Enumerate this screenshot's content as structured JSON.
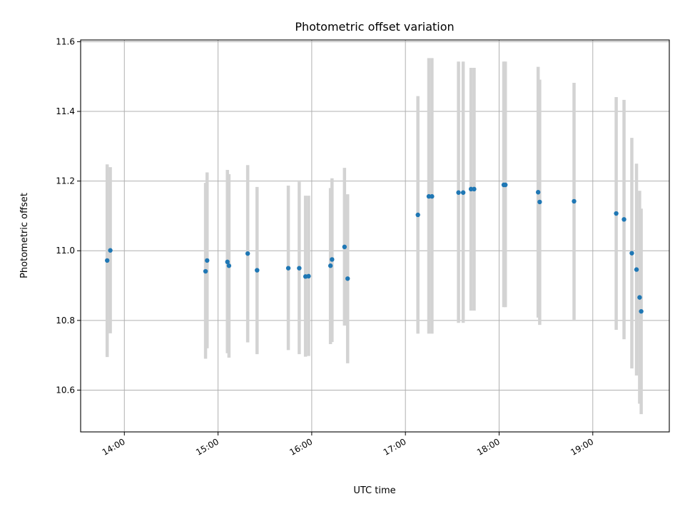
{
  "chart_data": {
    "type": "scatter",
    "title": "Photometric offset variation",
    "xlabel": "UTC time",
    "ylabel": "Photometric offset",
    "x_unit": "UTC",
    "xlim": [
      "13:32",
      "19:49"
    ],
    "ylim": [
      10.48,
      11.605
    ],
    "xticks": [
      "14:00",
      "15:00",
      "16:00",
      "17:00",
      "18:00",
      "19:00"
    ],
    "yticks": [
      10.6,
      10.8,
      11.0,
      11.2,
      11.4,
      11.6
    ],
    "ytick_labels": [
      "10.6",
      "10.8",
      "11.0",
      "11.2",
      "11.4",
      "11.6"
    ],
    "grid": true,
    "colors": {
      "point": "#1f77b4",
      "errorbar": "#d3d3d3",
      "grid": "#b0b0b0"
    },
    "series": [
      {
        "error_kind": "errorbar",
        "points": [
          {
            "x": "13:49",
            "y": 10.972,
            "ylow": 10.695,
            "yhigh": 11.248
          },
          {
            "x": "13:51",
            "y": 11.001,
            "ylow": 10.763,
            "yhigh": 11.24
          },
          {
            "x": "14:52",
            "y": 10.941,
            "ylow": 10.69,
            "yhigh": 11.195
          },
          {
            "x": "14:53",
            "y": 10.972,
            "ylow": 10.72,
            "yhigh": 11.225
          },
          {
            "x": "15:06",
            "y": 10.968,
            "ylow": 10.706,
            "yhigh": 11.232
          },
          {
            "x": "15:07",
            "y": 10.957,
            "ylow": 10.693,
            "yhigh": 11.22
          },
          {
            "x": "15:19",
            "y": 10.992,
            "ylow": 10.737,
            "yhigh": 11.246
          },
          {
            "x": "15:25",
            "y": 10.944,
            "ylow": 10.703,
            "yhigh": 11.183
          },
          {
            "x": "15:45",
            "y": 10.95,
            "ylow": 10.715,
            "yhigh": 11.187
          },
          {
            "x": "15:52",
            "y": 10.95,
            "ylow": 10.703,
            "yhigh": 11.198
          },
          {
            "x": "15:56",
            "y": 10.926,
            "ylow": 10.696,
            "yhigh": 11.158
          },
          {
            "x": "15:58",
            "y": 10.927,
            "ylow": 10.698,
            "yhigh": 11.158
          },
          {
            "x": "16:12",
            "y": 10.957,
            "ylow": 10.732,
            "yhigh": 11.18
          },
          {
            "x": "16:13",
            "y": 10.975,
            "ylow": 10.738,
            "yhigh": 11.208
          },
          {
            "x": "16:21",
            "y": 11.011,
            "ylow": 10.785,
            "yhigh": 11.238
          },
          {
            "x": "16:23",
            "y": 10.92,
            "ylow": 10.677,
            "yhigh": 11.162
          },
          {
            "x": "17:08",
            "y": 11.103,
            "ylow": 10.762,
            "yhigh": 11.444
          },
          {
            "x": "17:15",
            "y": 11.156,
            "ylow": 10.762,
            "yhigh": 11.553
          },
          {
            "x": "17:17",
            "y": 11.156,
            "ylow": 10.762,
            "yhigh": 11.553
          },
          {
            "x": "17:34",
            "y": 11.167,
            "ylow": 10.793,
            "yhigh": 11.543
          },
          {
            "x": "17:37",
            "y": 11.167,
            "ylow": 10.793,
            "yhigh": 11.543
          },
          {
            "x": "17:42",
            "y": 11.177,
            "ylow": 10.828,
            "yhigh": 11.525
          },
          {
            "x": "17:44",
            "y": 11.177,
            "ylow": 10.828,
            "yhigh": 11.525
          },
          {
            "x": "18:03",
            "y": 11.189,
            "ylow": 10.838,
            "yhigh": 11.543
          },
          {
            "x": "18:04",
            "y": 11.189,
            "ylow": 10.838,
            "yhigh": 11.543
          },
          {
            "x": "18:25",
            "y": 11.168,
            "ylow": 10.808,
            "yhigh": 11.528
          },
          {
            "x": "18:26",
            "y": 11.14,
            "ylow": 10.787,
            "yhigh": 11.491
          },
          {
            "x": "18:48",
            "y": 11.142,
            "ylow": 10.802,
            "yhigh": 11.482
          },
          {
            "x": "19:15",
            "y": 11.107,
            "ylow": 10.773,
            "yhigh": 11.441
          },
          {
            "x": "19:20",
            "y": 11.09,
            "ylow": 10.746,
            "yhigh": 11.433
          },
          {
            "x": "19:25",
            "y": 10.993,
            "ylow": 10.662,
            "yhigh": 11.324
          },
          {
            "x": "19:28",
            "y": 10.946,
            "ylow": 10.642,
            "yhigh": 11.25
          },
          {
            "x": "19:30",
            "y": 10.866,
            "ylow": 10.561,
            "yhigh": 11.172
          },
          {
            "x": "19:31",
            "y": 10.826,
            "ylow": 10.531,
            "yhigh": 11.121
          }
        ]
      }
    ]
  }
}
